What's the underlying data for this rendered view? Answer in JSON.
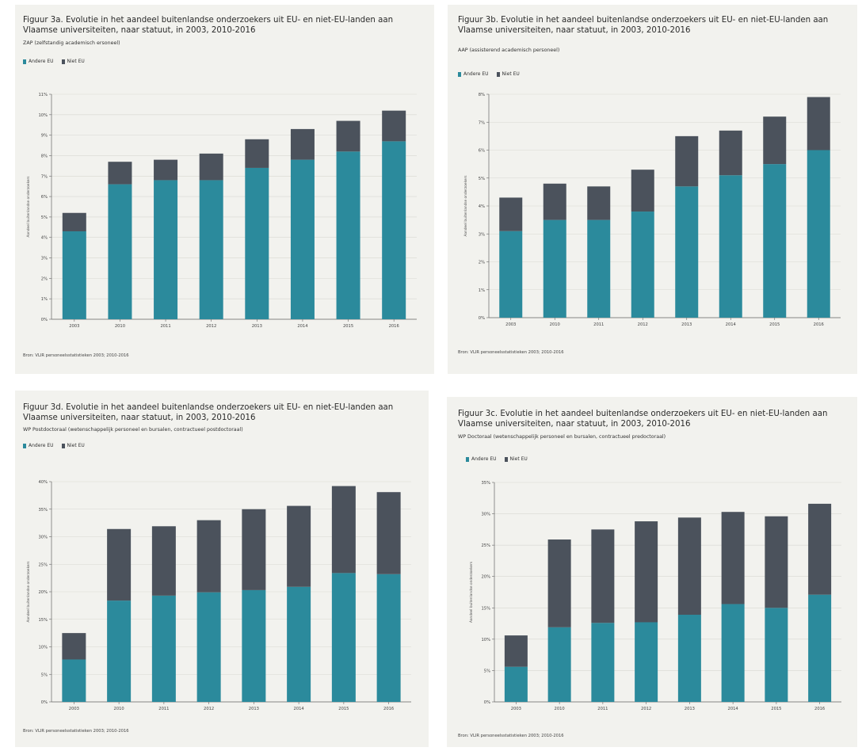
{
  "colors": {
    "andere_eu": "#2b8a9c",
    "niet_eu": "#4b525c",
    "panel_bg": "#f2f2ee"
  },
  "chart_data": [
    {
      "id": "fig3a",
      "type": "bar",
      "stacked": true,
      "title": "Figuur 3a. Evolutie in het aandeel buitenlandse onderzoekers uit EU- en niet-EU-landen aan Vlaamse universiteiten, naar statuut, in 2003, 2010-2016",
      "subtitle": "ZAP (zelfstandig academisch ersoneel)",
      "ylabel": "Aandeel buitenlandse onderzoekers",
      "source": "Bron: VLIR personeelsstatistieken 2003; 2010-2016",
      "legend": [
        "Andere EU",
        "Niet EU"
      ],
      "categories": [
        "2003",
        "2010",
        "2011",
        "2012",
        "2013",
        "2014",
        "2015",
        "2016"
      ],
      "ylim": [
        0,
        11
      ],
      "yticks": [
        0,
        1,
        2,
        3,
        4,
        5,
        6,
        7,
        8,
        9,
        10,
        11
      ],
      "tick_labels": [
        "0%",
        "1%",
        "2%",
        "3%",
        "4%",
        "5%",
        "6%",
        "7%",
        "8%",
        "9%",
        "10%",
        "11%"
      ],
      "series": [
        {
          "name": "Andere EU",
          "values": [
            4.3,
            6.6,
            6.8,
            6.8,
            7.4,
            7.8,
            8.2,
            8.7
          ]
        },
        {
          "name": "Niet EU",
          "values": [
            0.9,
            1.1,
            1.0,
            1.3,
            1.4,
            1.5,
            1.5,
            1.5
          ]
        }
      ]
    },
    {
      "id": "fig3b",
      "type": "bar",
      "stacked": true,
      "title": "Figuur 3b. Evolutie in het aandeel buitenlandse onderzoekers uit EU- en niet-EU-landen aan Vlaamse universiteiten, naar statuut, in 2003, 2010-2016",
      "subtitle": "AAP (assisterend academisch personeel)",
      "ylabel": "Aandeel buitenlandse onderzoekers",
      "source": "Bron: VLIR personeelsstatistieken 2003; 2010-2016",
      "legend": [
        "Andere EU",
        "Niet EU"
      ],
      "categories": [
        "2003",
        "2010",
        "2011",
        "2012",
        "2013",
        "2014",
        "2015",
        "2016"
      ],
      "ylim": [
        0,
        8
      ],
      "yticks": [
        0,
        1,
        2,
        3,
        4,
        5,
        6,
        7,
        8
      ],
      "tick_labels": [
        "0%",
        "1%",
        "2%",
        "3%",
        "4%",
        "5%",
        "6%",
        "7%",
        "8%"
      ],
      "series": [
        {
          "name": "Andere EU",
          "values": [
            3.1,
            3.5,
            3.5,
            3.8,
            4.7,
            5.1,
            5.5,
            6.0
          ]
        },
        {
          "name": "Niet EU",
          "values": [
            1.2,
            1.3,
            1.2,
            1.5,
            1.8,
            1.6,
            1.7,
            1.9
          ]
        }
      ]
    },
    {
      "id": "fig3d",
      "type": "bar",
      "stacked": true,
      "title": "Figuur 3d. Evolutie in het aandeel buitenlandse onderzoekers uit EU- en niet-EU-landen aan Vlaamse universiteiten, naar statuut, in 2003, 2010-2016",
      "subtitle": "WP Postdoctoraal (wetenschappelijk personeel en bursalen, contractueel postdoctoraal)",
      "ylabel": "Aandeel buitenlandse onderzoekers",
      "source": "Bron: VLIR personeelsstatistieken 2003; 2010-2016",
      "legend": [
        "Andere EU",
        "Niet EU"
      ],
      "categories": [
        "2003",
        "2010",
        "2011",
        "2012",
        "2013",
        "2014",
        "2015",
        "2016"
      ],
      "ylim": [
        0,
        40
      ],
      "yticks": [
        0,
        5,
        10,
        15,
        20,
        25,
        30,
        35,
        40
      ],
      "tick_labels": [
        "0%",
        "5%",
        "10%",
        "15%",
        "20%",
        "25%",
        "30%",
        "35%",
        "40%"
      ],
      "series": [
        {
          "name": "Andere EU",
          "values": [
            7.7,
            18.4,
            19.3,
            19.9,
            20.3,
            20.9,
            23.4,
            23.2
          ]
        },
        {
          "name": "Niet EU",
          "values": [
            4.8,
            13.0,
            12.6,
            13.1,
            14.7,
            14.7,
            15.8,
            14.9
          ]
        }
      ]
    },
    {
      "id": "fig3c",
      "type": "bar",
      "stacked": true,
      "title": "Figuur 3c. Evolutie in het aandeel buitenlandse onderzoekers uit EU- en niet-EU-landen aan Vlaamse universiteiten, naar statuut, in 2003, 2010-2016",
      "subtitle": "WP Doctoraal (wetenschappelijk personeel en bursalen, contractueel predoctoraal)",
      "ylabel": "Aandeel buitenlandse onderzoekers",
      "source": "Bron: VLIR personeelsstatistieken 2003; 2010-2016",
      "legend": [
        "Andere EU",
        "Niet EU"
      ],
      "categories": [
        "2003",
        "2010",
        "2011",
        "2012",
        "2013",
        "2014",
        "2015",
        "2016"
      ],
      "ylim": [
        0,
        35
      ],
      "yticks": [
        0,
        5,
        10,
        15,
        20,
        25,
        30,
        35
      ],
      "tick_labels": [
        "0%",
        "5%",
        "10%",
        "15%",
        "20%",
        "25%",
        "30%",
        "35%"
      ],
      "series": [
        {
          "name": "Andere EU",
          "values": [
            5.6,
            11.9,
            12.6,
            12.7,
            13.9,
            15.6,
            15.0,
            17.1
          ]
        },
        {
          "name": "Niet EU",
          "values": [
            5.0,
            14.0,
            14.9,
            16.1,
            15.5,
            14.7,
            14.6,
            14.5
          ]
        }
      ]
    }
  ]
}
